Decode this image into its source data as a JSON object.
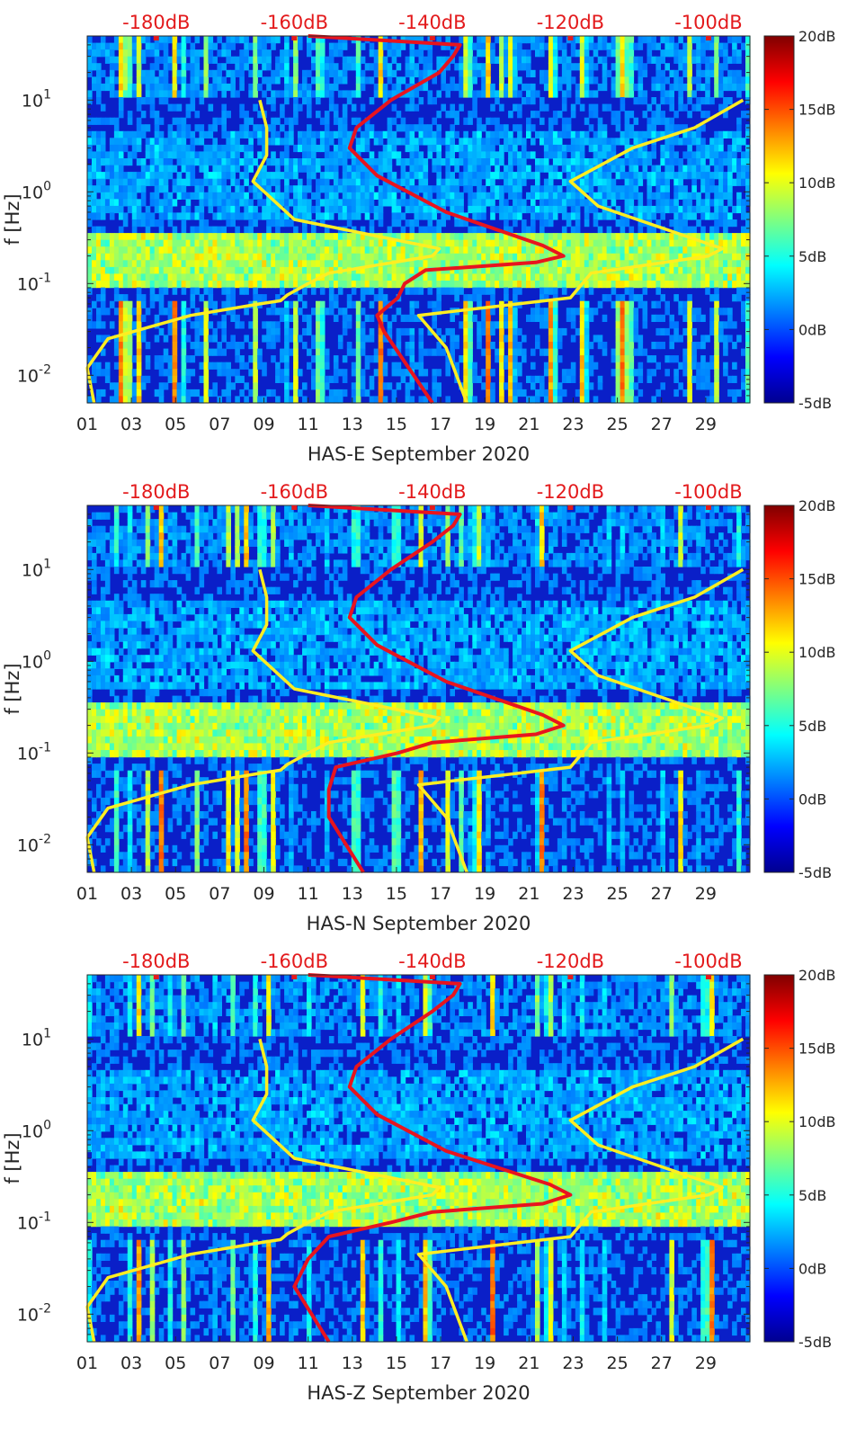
{
  "chart_data": [
    {
      "type": "heatmap",
      "title": "",
      "xlabel": "HAS-E September 2020",
      "ylabel": "f [Hz]",
      "x_ticks": [
        "01",
        "03",
        "05",
        "07",
        "09",
        "11",
        "13",
        "15",
        "17",
        "19",
        "21",
        "23",
        "25",
        "27",
        "29"
      ],
      "x_range_days": [
        1,
        31
      ],
      "y_scale": "log",
      "y_range_hz": [
        0.005,
        50
      ],
      "y_ticks": [
        {
          "label": "10",
          "exp": "-2",
          "value": 0.01
        },
        {
          "label": "10",
          "exp": "-1",
          "value": 0.1
        },
        {
          "label": "10",
          "exp": "0",
          "value": 1
        },
        {
          "label": "10",
          "exp": "1",
          "value": 10
        }
      ],
      "top_axis_labels": [
        "-180dB",
        "-160dB",
        "-140dB",
        "-120dB",
        "-100dB"
      ],
      "top_axis_range_db": [
        -190,
        -94
      ],
      "colorbar": {
        "labels": [
          "20dB",
          "15dB",
          "10dB",
          "5dB",
          "0dB",
          "-5dB"
        ],
        "range_db": [
          -5,
          20
        ],
        "colormap": "jet"
      },
      "series": [
        {
          "name": "noise model (yellow)",
          "color": "#ffee22",
          "points_db_hz": [
            [
              -189,
              0.005
            ],
            [
              -190,
              0.012
            ],
            [
              -187,
              0.025
            ],
            [
              -175,
              0.045
            ],
            [
              -165,
              0.06
            ],
            [
              -162,
              0.065
            ],
            [
              -161,
              0.075
            ],
            [
              -158,
              0.1
            ],
            [
              -155,
              0.13
            ],
            [
              -140,
              0.2
            ],
            [
              -139,
              0.24
            ],
            [
              -160,
              0.5
            ],
            [
              -166,
              1.3
            ],
            [
              -164,
              2.5
            ],
            [
              -164,
              5
            ],
            [
              -165,
              10
            ]
          ]
        },
        {
          "name": "noise model (yellow, shifted)",
          "color": "#ffee22",
          "points_db_hz": [
            [
              -135,
              0.005
            ],
            [
              -138,
              0.02
            ],
            [
              -142,
              0.045
            ],
            [
              -120,
              0.07
            ],
            [
              -117,
              0.13
            ],
            [
              -100,
              0.2
            ],
            [
              -98,
              0.24
            ],
            [
              -116,
              0.7
            ],
            [
              -120,
              1.3
            ],
            [
              -111,
              3
            ],
            [
              -102,
              5
            ],
            [
              -95,
              10
            ]
          ]
        },
        {
          "name": "spectrum (red)",
          "color": "#e8141e",
          "points_db_hz": [
            [
              -140,
              0.005
            ],
            [
              -147,
              0.03
            ],
            [
              -148,
              0.045
            ],
            [
              -145,
              0.07
            ],
            [
              -144,
              0.1
            ],
            [
              -141,
              0.14
            ],
            [
              -125,
              0.17
            ],
            [
              -121,
              0.2
            ],
            [
              -124,
              0.26
            ],
            [
              -138,
              0.6
            ],
            [
              -148,
              1.5
            ],
            [
              -152,
              3
            ],
            [
              -151,
              5
            ],
            [
              -146,
              10
            ],
            [
              -139,
              20
            ],
            [
              -137,
              30
            ],
            [
              -136,
              40
            ],
            [
              -158,
              50
            ]
          ]
        }
      ]
    },
    {
      "type": "heatmap",
      "title": "",
      "xlabel": "HAS-N September 2020",
      "ylabel": "f [Hz]",
      "x_ticks": [
        "01",
        "03",
        "05",
        "07",
        "09",
        "11",
        "13",
        "15",
        "17",
        "19",
        "21",
        "23",
        "25",
        "27",
        "29"
      ],
      "x_range_days": [
        1,
        31
      ],
      "y_scale": "log",
      "y_range_hz": [
        0.005,
        50
      ],
      "y_ticks": [
        {
          "label": "10",
          "exp": "-2",
          "value": 0.01
        },
        {
          "label": "10",
          "exp": "-1",
          "value": 0.1
        },
        {
          "label": "10",
          "exp": "0",
          "value": 1
        },
        {
          "label": "10",
          "exp": "1",
          "value": 10
        }
      ],
      "top_axis_labels": [
        "-180dB",
        "-160dB",
        "-140dB",
        "-120dB",
        "-100dB"
      ],
      "top_axis_range_db": [
        -190,
        -94
      ],
      "colorbar": {
        "labels": [
          "20dB",
          "15dB",
          "10dB",
          "5dB",
          "0dB",
          "-5dB"
        ],
        "range_db": [
          -5,
          20
        ],
        "colormap": "jet"
      },
      "series": [
        {
          "name": "noise model (yellow)",
          "color": "#ffee22",
          "points_db_hz": [
            [
              -189,
              0.005
            ],
            [
              -190,
              0.012
            ],
            [
              -187,
              0.025
            ],
            [
              -175,
              0.045
            ],
            [
              -165,
              0.06
            ],
            [
              -162,
              0.065
            ],
            [
              -161,
              0.075
            ],
            [
              -158,
              0.1
            ],
            [
              -155,
              0.13
            ],
            [
              -140,
              0.2
            ],
            [
              -139,
              0.24
            ],
            [
              -160,
              0.5
            ],
            [
              -166,
              1.3
            ],
            [
              -164,
              2.5
            ],
            [
              -164,
              5
            ],
            [
              -165,
              10
            ]
          ]
        },
        {
          "name": "noise model (yellow, shifted)",
          "color": "#ffee22",
          "points_db_hz": [
            [
              -135,
              0.005
            ],
            [
              -138,
              0.02
            ],
            [
              -142,
              0.045
            ],
            [
              -120,
              0.07
            ],
            [
              -117,
              0.13
            ],
            [
              -100,
              0.2
            ],
            [
              -98,
              0.24
            ],
            [
              -116,
              0.7
            ],
            [
              -120,
              1.3
            ],
            [
              -111,
              3
            ],
            [
              -102,
              5
            ],
            [
              -95,
              10
            ]
          ]
        },
        {
          "name": "spectrum (red)",
          "color": "#e8141e",
          "points_db_hz": [
            [
              -150,
              0.005
            ],
            [
              -155,
              0.02
            ],
            [
              -155,
              0.04
            ],
            [
              -154,
              0.07
            ],
            [
              -145,
              0.1
            ],
            [
              -140,
              0.13
            ],
            [
              -125,
              0.16
            ],
            [
              -121,
              0.2
            ],
            [
              -124,
              0.26
            ],
            [
              -138,
              0.6
            ],
            [
              -148,
              1.5
            ],
            [
              -152,
              3
            ],
            [
              -151,
              5
            ],
            [
              -146,
              10
            ],
            [
              -140,
              20
            ],
            [
              -137,
              30
            ],
            [
              -136,
              40
            ],
            [
              -158,
              50
            ]
          ]
        }
      ]
    },
    {
      "type": "heatmap",
      "title": "",
      "xlabel": "HAS-Z September 2020",
      "ylabel": "f [Hz]",
      "x_ticks": [
        "01",
        "03",
        "05",
        "07",
        "09",
        "11",
        "13",
        "15",
        "17",
        "19",
        "21",
        "23",
        "25",
        "27",
        "29"
      ],
      "x_range_days": [
        1,
        31
      ],
      "y_scale": "log",
      "y_range_hz": [
        0.005,
        50
      ],
      "y_ticks": [
        {
          "label": "10",
          "exp": "-2",
          "value": 0.01
        },
        {
          "label": "10",
          "exp": "-1",
          "value": 0.1
        },
        {
          "label": "10",
          "exp": "0",
          "value": 1
        },
        {
          "label": "10",
          "exp": "1",
          "value": 10
        }
      ],
      "top_axis_labels": [
        "-180dB",
        "-160dB",
        "-140dB",
        "-120dB",
        "-100dB"
      ],
      "top_axis_range_db": [
        -190,
        -94
      ],
      "colorbar": {
        "labels": [
          "20dB",
          "15dB",
          "10dB",
          "5dB",
          "0dB",
          "-5dB"
        ],
        "range_db": [
          -5,
          20
        ],
        "colormap": "jet"
      },
      "series": [
        {
          "name": "noise model (yellow)",
          "color": "#ffee22",
          "points_db_hz": [
            [
              -189,
              0.005
            ],
            [
              -190,
              0.012
            ],
            [
              -187,
              0.025
            ],
            [
              -175,
              0.045
            ],
            [
              -165,
              0.06
            ],
            [
              -162,
              0.065
            ],
            [
              -161,
              0.075
            ],
            [
              -158,
              0.1
            ],
            [
              -155,
              0.13
            ],
            [
              -140,
              0.2
            ],
            [
              -139,
              0.24
            ],
            [
              -160,
              0.5
            ],
            [
              -166,
              1.3
            ],
            [
              -164,
              2.5
            ],
            [
              -164,
              5
            ],
            [
              -165,
              10
            ]
          ]
        },
        {
          "name": "noise model (yellow, shifted)",
          "color": "#ffee22",
          "points_db_hz": [
            [
              -135,
              0.005
            ],
            [
              -138,
              0.02
            ],
            [
              -142,
              0.045
            ],
            [
              -120,
              0.07
            ],
            [
              -117,
              0.13
            ],
            [
              -100,
              0.2
            ],
            [
              -98,
              0.24
            ],
            [
              -116,
              0.7
            ],
            [
              -120,
              1.3
            ],
            [
              -111,
              3
            ],
            [
              -102,
              5
            ],
            [
              -95,
              10
            ]
          ]
        },
        {
          "name": "spectrum (red)",
          "color": "#e8141e",
          "points_db_hz": [
            [
              -155,
              0.005
            ],
            [
              -160,
              0.02
            ],
            [
              -158,
              0.04
            ],
            [
              -155,
              0.07
            ],
            [
              -146,
              0.1
            ],
            [
              -140,
              0.13
            ],
            [
              -124,
              0.16
            ],
            [
              -120,
              0.2
            ],
            [
              -123,
              0.26
            ],
            [
              -138,
              0.6
            ],
            [
              -148,
              1.5
            ],
            [
              -152,
              3
            ],
            [
              -151,
              5
            ],
            [
              -146,
              10
            ],
            [
              -140,
              20
            ],
            [
              -137,
              30
            ],
            [
              -136,
              40
            ],
            [
              -158,
              50
            ]
          ]
        }
      ]
    }
  ]
}
